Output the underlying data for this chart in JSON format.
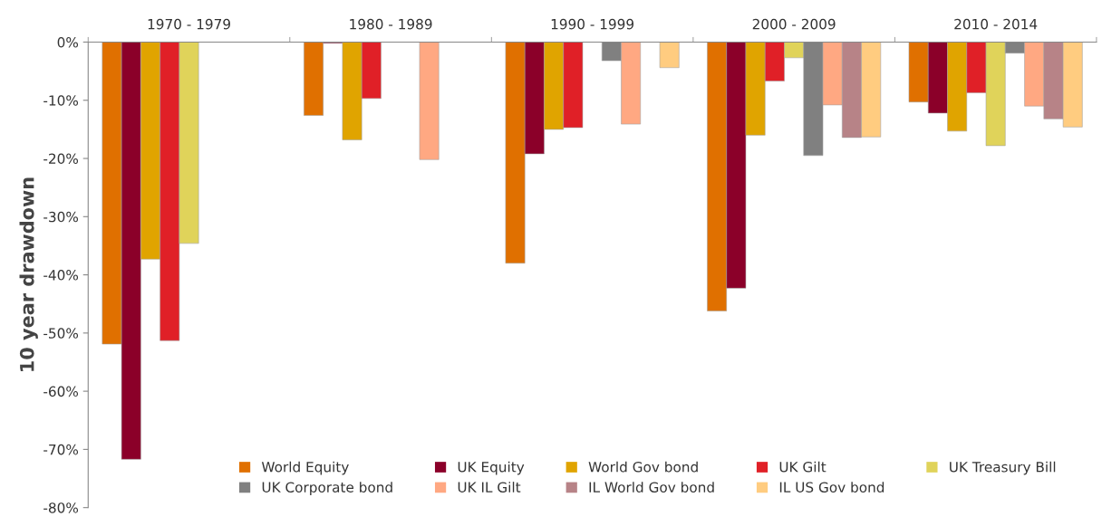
{
  "chart_data": {
    "type": "bar",
    "ylabel": "10 year drawdown",
    "categories": [
      "1970 - 1979",
      "1980 - 1989",
      "1990 - 1999",
      "2000 - 2009",
      "2010 - 2014"
    ],
    "series": [
      {
        "name": "World Equity",
        "color": "#e07000",
        "values": [
          -51.9,
          -12.6,
          -38.0,
          -46.2,
          -10.3
        ]
      },
      {
        "name": "UK Equity",
        "color": "#8b0029",
        "values": [
          -71.7,
          -0.2,
          -19.2,
          -42.3,
          -12.2
        ]
      },
      {
        "name": "World Gov bond",
        "color": "#e0a400",
        "values": [
          -37.3,
          -16.8,
          -15.0,
          -16.0,
          -15.3
        ]
      },
      {
        "name": "UK Gilt",
        "color": "#e02027",
        "values": [
          -51.3,
          -9.7,
          -14.7,
          -6.7,
          -8.7
        ]
      },
      {
        "name": "UK Treasury Bill",
        "color": "#e0d35a",
        "values": [
          -34.6,
          null,
          null,
          -2.7,
          -17.8
        ]
      },
      {
        "name": "UK Corporate bond",
        "color": "#808080",
        "values": [
          null,
          null,
          -3.2,
          -19.5,
          -1.9
        ]
      },
      {
        "name": "UK IL Gilt",
        "color": "#ffa882",
        "values": [
          null,
          -20.2,
          -14.1,
          -10.8,
          -11.0
        ]
      },
      {
        "name": "IL World Gov bond",
        "color": "#b78387",
        "values": [
          null,
          null,
          null,
          -16.4,
          -13.2
        ]
      },
      {
        "name": "IL US Gov bond",
        "color": "#ffcc80",
        "values": [
          null,
          null,
          -4.4,
          -16.3,
          -14.6
        ]
      }
    ],
    "ylim": [
      -80,
      0
    ],
    "yticks": [
      {
        "value": -80,
        "label": "-80%"
      },
      {
        "value": -70,
        "label": "-70%"
      },
      {
        "value": -60,
        "label": "-60%"
      },
      {
        "value": -50,
        "label": "-50%"
      },
      {
        "value": -40,
        "label": "-40%"
      },
      {
        "value": -30,
        "label": "-30%"
      },
      {
        "value": -20,
        "label": "-20%"
      },
      {
        "value": -10,
        "label": "-10%"
      },
      {
        "value": 0,
        "label": "0%"
      }
    ],
    "grid": false,
    "legend": "bottom"
  }
}
